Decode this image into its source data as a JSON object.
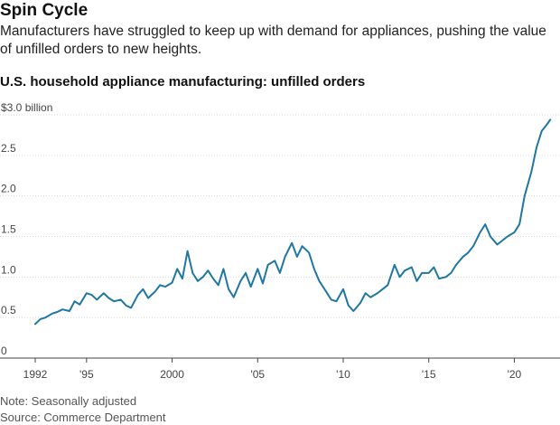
{
  "header": {
    "title": "Spin Cycle",
    "subtitle": "Manufacturers have struggled to keep up with demand for appliances, pushing the value of unfilled orders to new heights."
  },
  "footer": {
    "note": "Note: Seasonally adjusted",
    "source": "Source: Commerce Department"
  },
  "colors": {
    "line": "#1f77a4",
    "grid": "#d9d9d9",
    "axis": "#444444"
  },
  "chart_data": {
    "type": "line",
    "title": "U.S. household appliance manufacturing: unfilled orders",
    "xlabel": "",
    "ylabel": "",
    "xlim": [
      1992,
      2022.3
    ],
    "ylim": [
      0,
      3.0
    ],
    "y_ticks": [
      {
        "value": 3.0,
        "label": "$3.0 billion"
      },
      {
        "value": 2.5,
        "label": "2.5"
      },
      {
        "value": 2.0,
        "label": "2.0"
      },
      {
        "value": 1.5,
        "label": "1.5"
      },
      {
        "value": 1.0,
        "label": "1.0"
      },
      {
        "value": 0.5,
        "label": "0.5"
      },
      {
        "value": 0,
        "label": "0"
      }
    ],
    "x_ticks": [
      {
        "value": 1992,
        "label": "1992"
      },
      {
        "value": 1995,
        "label": "'95"
      },
      {
        "value": 2000,
        "label": "2000"
      },
      {
        "value": 2005,
        "label": "'05"
      },
      {
        "value": 2010,
        "label": "'10"
      },
      {
        "value": 2015,
        "label": "'15"
      },
      {
        "value": 2020,
        "label": "'20"
      }
    ],
    "series": [
      {
        "name": "Unfilled orders ($ billion)",
        "x": [
          1992.0,
          1992.3,
          1992.6,
          1993.0,
          1993.3,
          1993.6,
          1994.0,
          1994.3,
          1994.6,
          1995.0,
          1995.3,
          1995.6,
          1996.0,
          1996.3,
          1996.6,
          1997.0,
          1997.3,
          1997.6,
          1998.0,
          1998.3,
          1998.6,
          1999.0,
          1999.3,
          1999.6,
          2000.0,
          2000.3,
          2000.6,
          2000.9,
          2001.2,
          2001.5,
          2001.8,
          2002.1,
          2002.4,
          2002.7,
          2003.0,
          2003.3,
          2003.6,
          2004.0,
          2004.3,
          2004.6,
          2005.0,
          2005.3,
          2005.6,
          2006.0,
          2006.3,
          2006.6,
          2007.0,
          2007.3,
          2007.6,
          2008.0,
          2008.3,
          2008.6,
          2009.0,
          2009.3,
          2009.6,
          2010.0,
          2010.3,
          2010.6,
          2011.0,
          2011.3,
          2011.6,
          2012.0,
          2012.3,
          2012.6,
          2013.0,
          2013.3,
          2013.6,
          2014.0,
          2014.3,
          2014.6,
          2015.0,
          2015.3,
          2015.6,
          2016.0,
          2016.3,
          2016.6,
          2017.0,
          2017.3,
          2017.6,
          2018.0,
          2018.3,
          2018.6,
          2019.0,
          2019.3,
          2019.6,
          2020.0,
          2020.3,
          2020.6,
          2021.0,
          2021.3,
          2021.6,
          2021.9,
          2022.1
        ],
        "values": [
          0.42,
          0.48,
          0.5,
          0.55,
          0.57,
          0.6,
          0.58,
          0.7,
          0.66,
          0.8,
          0.78,
          0.72,
          0.8,
          0.74,
          0.7,
          0.72,
          0.65,
          0.62,
          0.78,
          0.85,
          0.74,
          0.82,
          0.9,
          0.88,
          0.93,
          1.1,
          0.98,
          1.32,
          1.05,
          0.95,
          1.0,
          1.08,
          0.98,
          0.9,
          1.1,
          0.85,
          0.75,
          0.95,
          1.05,
          0.88,
          1.1,
          0.92,
          1.15,
          1.2,
          1.05,
          1.25,
          1.42,
          1.25,
          1.38,
          1.3,
          1.1,
          0.95,
          0.82,
          0.72,
          0.7,
          0.85,
          0.65,
          0.58,
          0.68,
          0.8,
          0.75,
          0.8,
          0.85,
          0.9,
          1.15,
          1.0,
          1.08,
          1.12,
          0.95,
          1.05,
          1.05,
          1.12,
          0.98,
          1.0,
          1.05,
          1.15,
          1.25,
          1.3,
          1.38,
          1.55,
          1.65,
          1.5,
          1.4,
          1.45,
          1.5,
          1.55,
          1.65,
          2.0,
          2.3,
          2.6,
          2.8,
          2.88,
          2.94
        ]
      }
    ]
  }
}
